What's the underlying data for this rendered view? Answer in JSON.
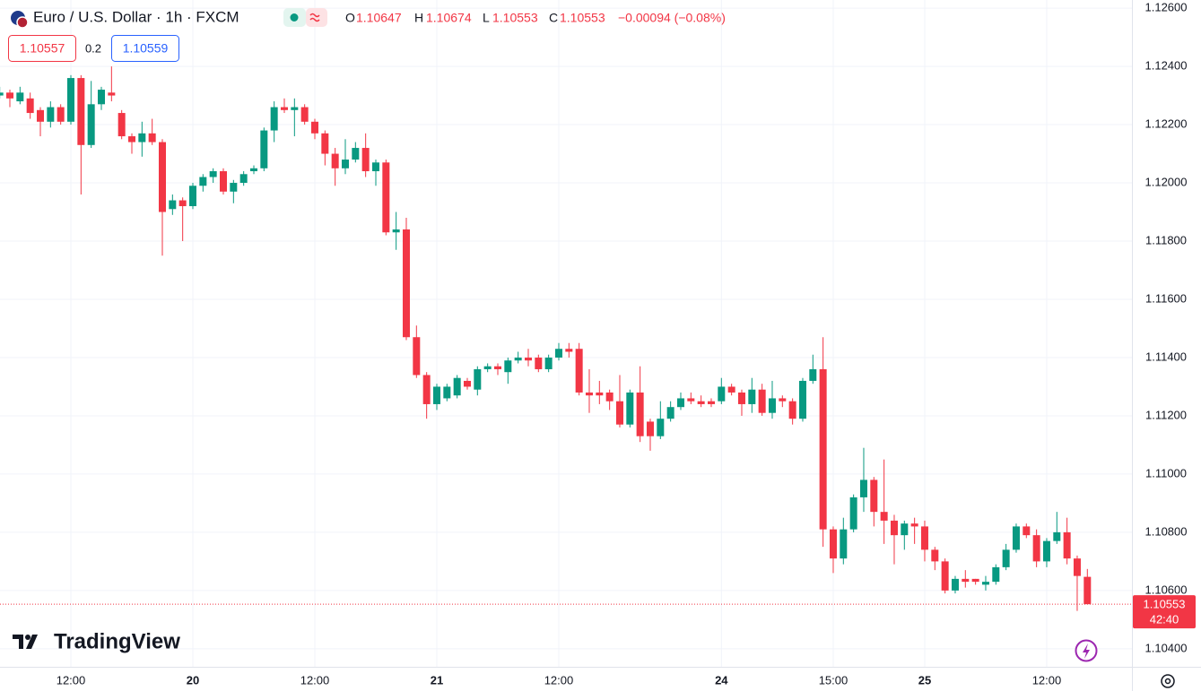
{
  "chart_data": {
    "type": "candlestick",
    "title": "Euro / U.S. Dollar · 1h · FXCM",
    "ohlc_letters": [
      "O",
      "H",
      "L",
      "C"
    ],
    "change": "−0.00094 (−0.08%)",
    "bid": 1.10557,
    "spread": 0.2,
    "ask": 1.10559,
    "countdown": "42:40",
    "brand": "TradingView",
    "up_color": "#089981",
    "down_color": "#f23645",
    "grid": true,
    "ylim": [
      1.10338,
      1.12628
    ],
    "yticks": [
      {
        "value": 1.126,
        "label": "1.12600"
      },
      {
        "value": 1.124,
        "label": "1.12400"
      },
      {
        "value": 1.122,
        "label": "1.12200"
      },
      {
        "value": 1.12,
        "label": "1.12000"
      },
      {
        "value": 1.118,
        "label": "1.11800"
      },
      {
        "value": 1.116,
        "label": "1.11600"
      },
      {
        "value": 1.114,
        "label": "1.11400"
      },
      {
        "value": 1.112,
        "label": "1.11200"
      },
      {
        "value": 1.11,
        "label": "1.11000"
      },
      {
        "value": 1.108,
        "label": "1.10800"
      },
      {
        "value": 1.106,
        "label": "1.10600"
      },
      {
        "value": 1.104,
        "label": "1.10400"
      }
    ],
    "categories": [
      null,
      null,
      null,
      null,
      null,
      null,
      null,
      "12:00",
      null,
      null,
      null,
      null,
      null,
      null,
      null,
      null,
      null,
      null,
      null,
      "20",
      null,
      null,
      null,
      null,
      null,
      null,
      null,
      null,
      null,
      null,
      null,
      "12:00",
      null,
      null,
      null,
      null,
      null,
      null,
      null,
      null,
      null,
      null,
      null,
      "21",
      null,
      null,
      null,
      null,
      null,
      null,
      null,
      null,
      null,
      null,
      null,
      "12:00",
      null,
      null,
      null,
      null,
      null,
      null,
      null,
      null,
      null,
      null,
      null,
      null,
      null,
      null,
      null,
      "24",
      null,
      null,
      null,
      null,
      null,
      null,
      null,
      null,
      null,
      null,
      "15:00",
      null,
      null,
      null,
      null,
      null,
      null,
      null,
      null,
      "25",
      null,
      null,
      null,
      null,
      null,
      null,
      null,
      null,
      null,
      null,
      null,
      "12:00",
      null,
      null,
      null,
      null
    ],
    "open": [
      1.123,
      1.1231,
      1.1228,
      1.1229,
      1.1225,
      1.1221,
      1.1226,
      1.1221,
      1.1236,
      1.1213,
      1.1227,
      1.1231,
      1.1224,
      1.1216,
      1.1214,
      1.1217,
      1.1214,
      1.1191,
      1.1194,
      1.1192,
      1.1199,
      1.1202,
      1.1204,
      1.1197,
      1.12,
      1.1204,
      1.1205,
      1.1218,
      1.1226,
      1.1225,
      1.1226,
      1.1221,
      1.1217,
      1.121,
      1.1205,
      1.1208,
      1.1212,
      1.1204,
      1.1207,
      1.1183,
      1.1184,
      1.1147,
      1.1134,
      1.1124,
      1.1126,
      1.1127,
      1.1132,
      1.1129,
      1.1136,
      1.1137,
      1.1135,
      1.1139,
      1.114,
      1.114,
      1.1136,
      1.114,
      1.1143,
      1.1143,
      1.1128,
      1.1128,
      1.1128,
      1.1125,
      1.1117,
      1.1128,
      1.1118,
      1.1113,
      1.1119,
      1.1123,
      1.1126,
      1.1125,
      1.1125,
      1.1125,
      1.113,
      1.1128,
      1.1124,
      1.1129,
      1.1121,
      1.1126,
      1.1125,
      1.1119,
      1.1132,
      1.1136,
      1.1081,
      1.1071,
      1.1081,
      1.1092,
      1.1098,
      1.1087,
      1.1084,
      1.1079,
      1.1083,
      1.1082,
      1.1074,
      1.107,
      1.106,
      1.1064,
      1.1064,
      1.1062,
      1.1063,
      1.1068,
      1.1074,
      1.1082,
      1.1079,
      1.107,
      1.1077,
      1.108,
      1.1071,
      1.10647
    ],
    "high": [
      1.1233,
      1.1232,
      1.1233,
      1.1231,
      1.1226,
      1.1228,
      1.1227,
      1.1237,
      1.1237,
      1.1235,
      1.1233,
      1.124,
      1.1225,
      1.1217,
      1.1221,
      1.1222,
      1.1215,
      1.1196,
      1.1195,
      1.12,
      1.1203,
      1.1205,
      1.1205,
      1.1201,
      1.1204,
      1.1206,
      1.1219,
      1.1228,
      1.1229,
      1.1229,
      1.1227,
      1.1222,
      1.1218,
      1.1212,
      1.1215,
      1.1214,
      1.1217,
      1.1208,
      1.1208,
      1.119,
      1.1188,
      1.1151,
      1.1135,
      1.1131,
      1.1131,
      1.1134,
      1.1133,
      1.1137,
      1.1138,
      1.1138,
      1.114,
      1.1142,
      1.1143,
      1.1141,
      1.1141,
      1.1145,
      1.1145,
      1.1145,
      1.1136,
      1.1132,
      1.1129,
      1.1134,
      1.1129,
      1.1137,
      1.1119,
      1.1125,
      1.1125,
      1.1128,
      1.1128,
      1.1127,
      1.1126,
      1.1133,
      1.1131,
      1.1129,
      1.1133,
      1.1131,
      1.1132,
      1.1127,
      1.1126,
      1.1133,
      1.1141,
      1.1147,
      1.1082,
      1.1085,
      1.1093,
      1.1109,
      1.1099,
      1.1105,
      1.1086,
      1.1084,
      1.1085,
      1.1084,
      1.1075,
      1.1071,
      1.1065,
      1.1067,
      1.1064,
      1.1065,
      1.1069,
      1.1076,
      1.1083,
      1.1083,
      1.1081,
      1.1078,
      1.1087,
      1.1085,
      1.1072,
      1.10674
    ],
    "low": [
      1.1229,
      1.1226,
      1.1227,
      1.1222,
      1.1216,
      1.1219,
      1.122,
      1.122,
      1.1196,
      1.1212,
      1.1225,
      1.1228,
      1.1215,
      1.121,
      1.1209,
      1.1213,
      1.1175,
      1.1189,
      1.118,
      1.1191,
      1.1197,
      1.12,
      1.1196,
      1.1193,
      1.1199,
      1.1203,
      1.1204,
      1.1214,
      1.1224,
      1.1216,
      1.122,
      1.1215,
      1.1206,
      1.1199,
      1.1203,
      1.1207,
      1.1202,
      1.1199,
      1.1182,
      1.1177,
      1.1146,
      1.1133,
      1.1119,
      1.1122,
      1.1125,
      1.1126,
      1.1129,
      1.1127,
      1.1135,
      1.1134,
      1.1131,
      1.1138,
      1.1137,
      1.1135,
      1.1135,
      1.1139,
      1.114,
      1.1127,
      1.1121,
      1.1124,
      1.1122,
      1.1116,
      1.1116,
      1.1111,
      1.1108,
      1.1112,
      1.1118,
      1.1122,
      1.1124,
      1.1123,
      1.1123,
      1.1124,
      1.1127,
      1.112,
      1.1121,
      1.112,
      1.1119,
      1.1123,
      1.1117,
      1.1118,
      1.1131,
      1.1075,
      1.1066,
      1.1069,
      1.108,
      1.1087,
      1.1082,
      1.1076,
      1.1069,
      1.1074,
      1.1076,
      1.107,
      1.1067,
      1.1059,
      1.1059,
      1.1061,
      1.1062,
      1.106,
      1.1062,
      1.1067,
      1.1073,
      1.1078,
      1.1068,
      1.1068,
      1.1076,
      1.1069,
      1.1053,
      1.10553
    ],
    "close": [
      1.1231,
      1.1229,
      1.1231,
      1.1224,
      1.1221,
      1.1226,
      1.1221,
      1.1236,
      1.1213,
      1.1227,
      1.1232,
      1.123,
      1.1216,
      1.1214,
      1.1217,
      1.1214,
      1.119,
      1.1194,
      1.1192,
      1.1199,
      1.1202,
      1.1204,
      1.1197,
      1.12,
      1.1203,
      1.1205,
      1.1218,
      1.1226,
      1.1225,
      1.1226,
      1.1221,
      1.1217,
      1.121,
      1.1205,
      1.1208,
      1.1212,
      1.1204,
      1.1207,
      1.1183,
      1.1184,
      1.1147,
      1.1134,
      1.1124,
      1.113,
      1.113,
      1.1133,
      1.113,
      1.1136,
      1.1137,
      1.1136,
      1.1139,
      1.114,
      1.1139,
      1.1136,
      1.114,
      1.1143,
      1.1142,
      1.1128,
      1.1127,
      1.1127,
      1.1125,
      1.1117,
      1.1128,
      1.1113,
      1.1113,
      1.1119,
      1.1123,
      1.1126,
      1.1125,
      1.1124,
      1.1124,
      1.113,
      1.1128,
      1.1124,
      1.1129,
      1.1121,
      1.1126,
      1.1125,
      1.1119,
      1.1132,
      1.1136,
      1.1081,
      1.1071,
      1.1081,
      1.1092,
      1.1098,
      1.1087,
      1.1084,
      1.1079,
      1.1083,
      1.1082,
      1.1074,
      1.107,
      1.106,
      1.1064,
      1.1063,
      1.1063,
      1.1063,
      1.1068,
      1.1074,
      1.1082,
      1.1079,
      1.107,
      1.1077,
      1.108,
      1.1071,
      1.1065,
      1.10553
    ]
  }
}
